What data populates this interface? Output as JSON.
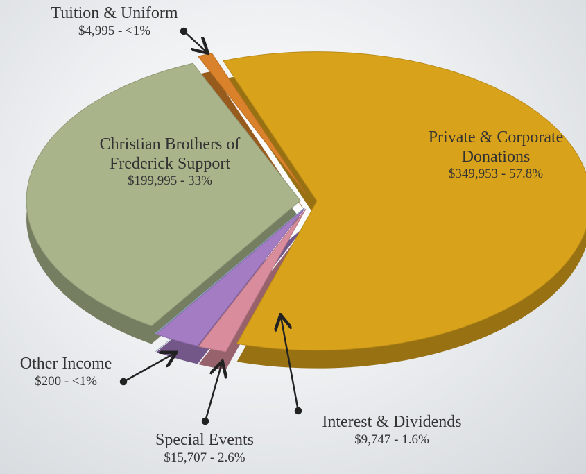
{
  "chart_data": {
    "type": "pie",
    "categories": [
      "Private & Corporate Donations",
      "Interest & Dividends",
      "Special Events",
      "Other Income",
      "Christian Brothers of Frederick Support",
      "Tuition & Uniform"
    ],
    "values": [
      349953,
      9747,
      15707,
      200,
      199995,
      4995
    ],
    "value_labels": [
      "$349,953 - 57.8%",
      "$9,747 - 1.6%",
      "$15,707 - 2.6%",
      "$200 - <1%",
      "$199,995 - 33%",
      "$4,995 - <1%"
    ],
    "colors": [
      "#d9a21b",
      "#d98c9c",
      "#a47cc4",
      "#9cbadb",
      "#a9b48b",
      "#d9822b"
    ]
  }
}
